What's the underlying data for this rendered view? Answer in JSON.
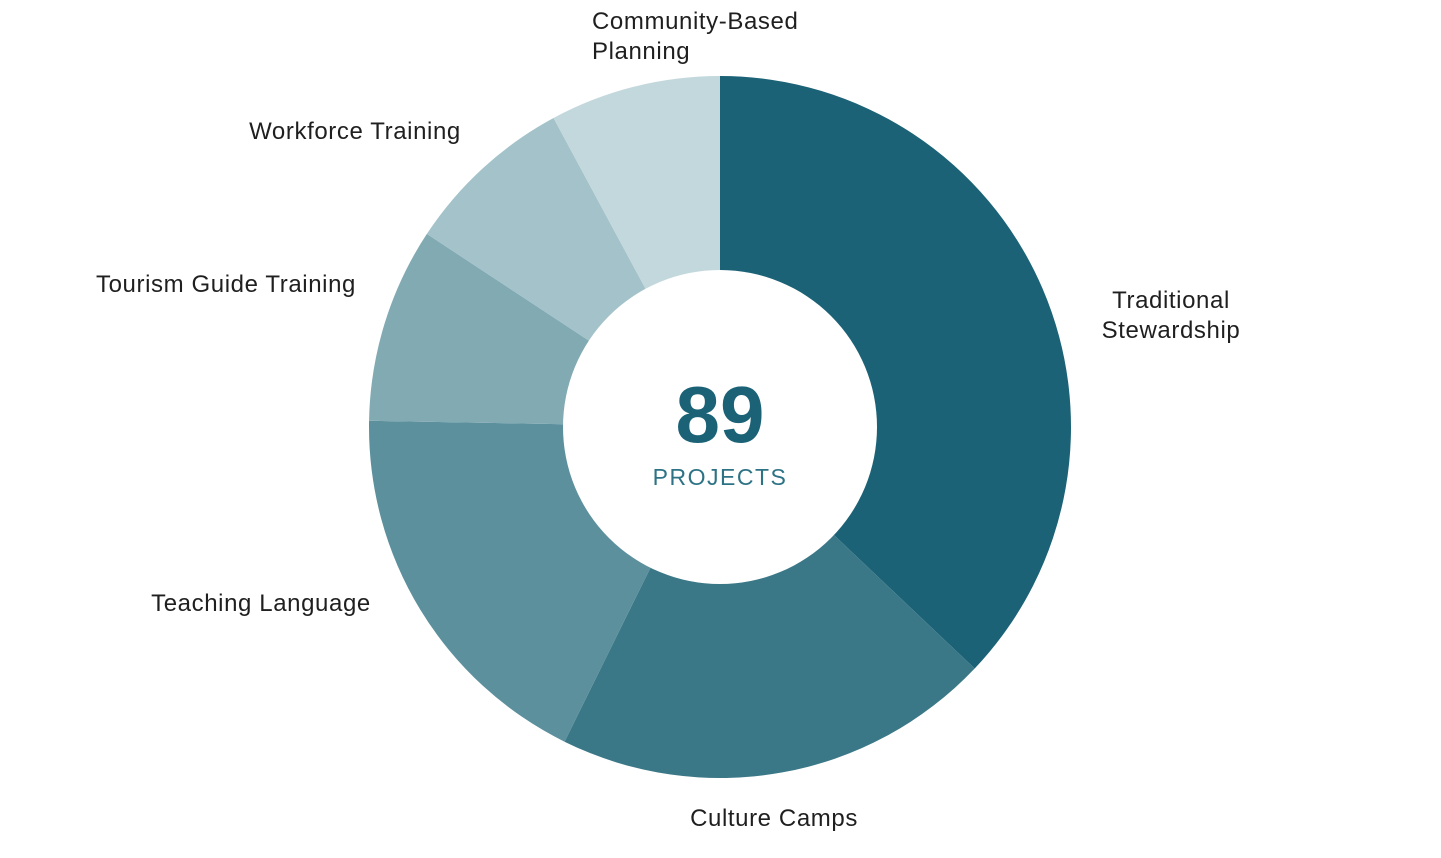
{
  "chart_data": {
    "type": "pie",
    "donut": true,
    "total_value": "89",
    "total_caption": "PROJECTS",
    "slices": [
      {
        "label": [
          "Traditional",
          "Stewardship"
        ],
        "value": 33,
        "color": "#1b6276"
      },
      {
        "label": [
          "Culture Camps"
        ],
        "value": 18,
        "color": "#3b7887"
      },
      {
        "label": [
          "Teaching Language"
        ],
        "value": 16,
        "color": "#5c909d"
      },
      {
        "label": [
          "Tourism Guide Training"
        ],
        "value": 8,
        "color": "#82aab3"
      },
      {
        "label": [
          "Workforce Training"
        ],
        "value": 7,
        "color": "#a3c2c9"
      },
      {
        "label": [
          "Community-Based",
          "Planning"
        ],
        "value": 7,
        "color": "#c3d8dd"
      }
    ]
  }
}
